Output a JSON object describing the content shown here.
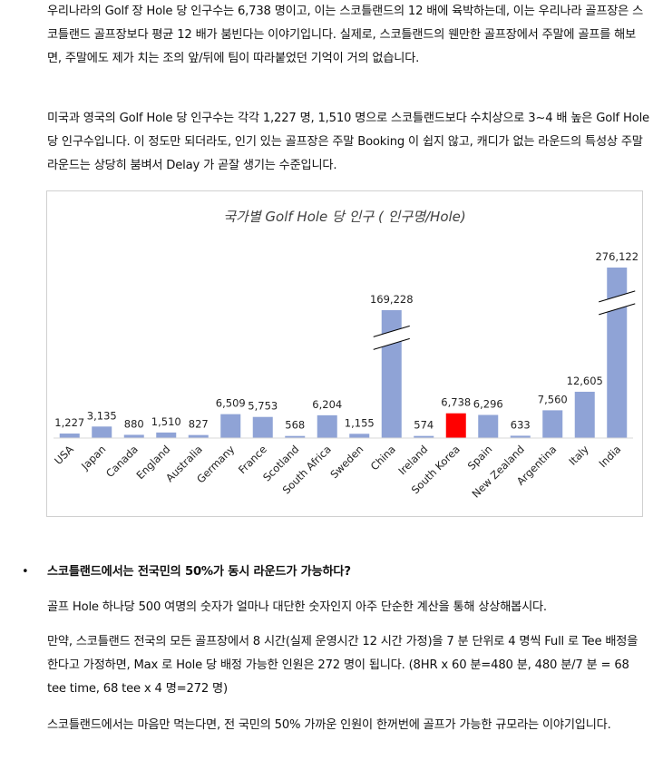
{
  "paragraphs": {
    "p1": "우리나라의 Golf 장 Hole 당 인구수는 6,738 명이고, 이는 스코틀랜드의 12 배에 육박하는데, 이는 우리나라 골프장은 스코틀랜드 골프장보다 평균 12 배가 붐빈다는 이야기입니다. 실제로, 스코틀랜드의 웬만한 골프장에서 주말에 골프를 해보면, 주말에도 제가 치는 조의 앞/뒤에 팀이 따라붙었던 기억이 거의 없습니다.",
    "p2": "미국과 영국의 Golf Hole 당 인구수는 각각 1,227 명, 1,510 명으로 스코틀랜드보다 수치상으로 3~4 배 높은 Golf Hole 당 인구수입니다. 이 정도만 되더라도, 인기 있는 골프장은 주말 Booking 이 쉽지 않고, 캐디가 없는 라운드의 특성상 주말 라운드는 상당히 붐벼서 Delay 가 곧잘 생기는 수준입니다.",
    "bullet": "스코틀랜드에서는 전국민의 50%가 동시 라운드가 가능하다?",
    "p3": "골프 Hole 하나당 500 여명의 숫자가 얼마나 대단한 숫자인지 아주 단순한 계산을 통해 상상해봅시다.",
    "p4": "만약, 스코틀랜드 전국의 모든 골프장에서 8 시간(실제 운영시간 12 시간 가정)을 7 분 단위로 4 명씩 Full 로 Tee 배정을 한다고 가정하면, Max 로 Hole 당 배정 가능한 인원은 272 명이 됩니다. (8HR x 60 분=480 분, 480 분/7 분 = 68 tee time, 68 tee x 4 명=272 명)",
    "p5": "스코틀랜드에서는 마음만 먹는다면, 전 국민의 50% 가까운 인원이 한꺼번에 골프가 가능한 규모라는 이야기입니다."
  },
  "bullet_symbol": "•",
  "chart_data": {
    "type": "bar",
    "title": "국가별 Golf Hole 당 인구 ( 인구명/Hole)",
    "xlabel": "",
    "ylabel": "",
    "categories": [
      "USA",
      "Japan",
      "Canada",
      "England",
      "Australia",
      "Germany",
      "France",
      "Scotland",
      "South Africa",
      "Sweden",
      "China",
      "Ireland",
      "South Korea",
      "Spain",
      "New Zealand",
      "Argentina",
      "Italy",
      "India"
    ],
    "values": [
      1227,
      3135,
      880,
      1510,
      827,
      6509,
      5753,
      568,
      6204,
      1155,
      169228,
      574,
      6738,
      6296,
      633,
      7560,
      12605,
      276122
    ],
    "value_labels": [
      "1,227",
      "3,135",
      "880",
      "1,510",
      "827",
      "6,509",
      "5,753",
      "568",
      "6,204",
      "1,155",
      "169,228",
      "574",
      "6,738",
      "6,296",
      "633",
      "7,560",
      "12,605",
      "276,122"
    ],
    "broken_axis_categories": [
      "China",
      "India"
    ],
    "highlight_category": "South Korea",
    "bar_color": "#8fa3d6",
    "highlight_color": "#ff0000",
    "grid": false,
    "legend": "none"
  }
}
